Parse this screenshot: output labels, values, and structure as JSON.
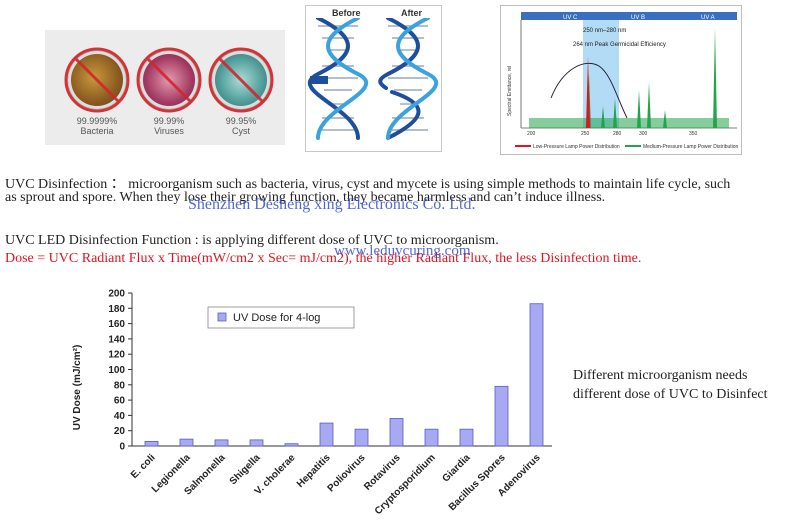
{
  "images": {
    "microbes": [
      {
        "percent": "99.9999%",
        "name": "Bacteria"
      },
      {
        "percent": "99.99%",
        "name": "Viruses"
      },
      {
        "percent": "99.95%",
        "name": "Cyst"
      }
    ],
    "dna": {
      "before_label": "Before",
      "after_label": "After"
    },
    "spectrum": {
      "bands": [
        "UV C",
        "UV B",
        "UV A"
      ],
      "range_label": "250 nm–280 nm",
      "peak_label": "264 nm Peak Germicidal Efficiency",
      "ylabel": "Spectral Emittance, rel",
      "x_ticks": [
        "200",
        "250",
        "280",
        "300",
        "350"
      ],
      "legend": [
        "Low-Pressure Lamp Power Distribution",
        "Medium-Pressure Lamp Power Distribution"
      ],
      "colors": {
        "low_pressure": "#e0141e",
        "medium_pressure": "#22a44a",
        "uvc_band": "#9fd3f3",
        "header": "#3a6fc0"
      }
    }
  },
  "text": {
    "description_line1": "UVC Disinfection ： microorganism such as bacteria, virus, cyst and mycete is using simple methods to maintain life cycle, such",
    "description_line2": "as sprout and spore. When they lose their growing function, they became harmless and can’t induce illness.",
    "function_line": "UVC LED Disinfection Function : is applying different dose of UVC to microorganism.",
    "dose_line": "Dose = UVC Radiant Flux x Time(mW/cm2 x Sec= mJ/cm2), the higher Radiant Flux, the less Disinfection time.",
    "watermark_company": "Shenzhen Desheng xing Electronics Co. Ltd.",
    "watermark_url": "www.leduvcuring.com",
    "side_note": "Different microorganism needs different dose of UVC to Disinfect"
  },
  "chart_data": {
    "type": "bar",
    "categories": [
      "E. coli",
      "Legionella",
      "Salmonella",
      "Shigella",
      "V. cholerae",
      "Hepatitis",
      "Poliovirus",
      "Rotavirus",
      "Cryptosporidium",
      "Giardia",
      "Bacillus Spores",
      "Adenovirus"
    ],
    "series": [
      {
        "name": "UV Dose for 4-log",
        "values": [
          6,
          9,
          8,
          8,
          3,
          30,
          22,
          36,
          22,
          22,
          78,
          186
        ]
      }
    ],
    "ylabel": "UV Dose (mJ/cm²)",
    "xlabel": "",
    "ylim": [
      0,
      200
    ],
    "y_ticks": [
      0,
      20,
      40,
      60,
      80,
      100,
      120,
      140,
      160,
      180,
      200
    ],
    "grid": false,
    "legend_position": "top-left",
    "colors": {
      "bar_fill": "#a7a9f2",
      "bar_stroke": "#5a5dc4"
    }
  }
}
